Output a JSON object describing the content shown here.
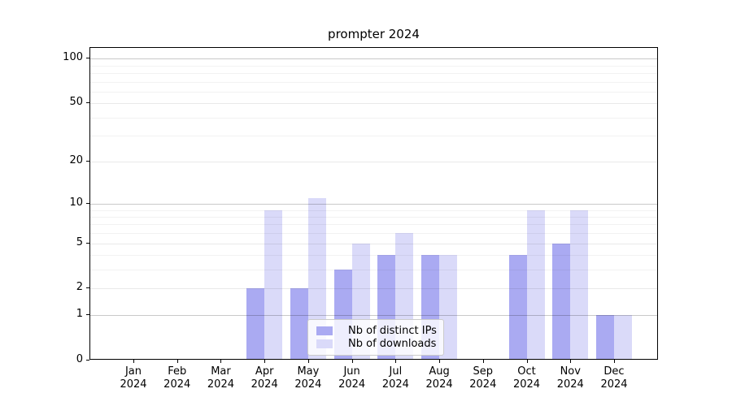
{
  "chart_data": {
    "type": "bar",
    "title": "prompter 2024",
    "categories": [
      "Jan",
      "Feb",
      "Mar",
      "Apr",
      "May",
      "Jun",
      "Jul",
      "Aug",
      "Sep",
      "Oct",
      "Nov",
      "Dec"
    ],
    "x_year": "2024",
    "series": [
      {
        "name": "Nb of distinct IPs",
        "color": "#aaaaf2",
        "values": [
          0,
          0,
          0,
          2,
          2,
          3,
          4,
          4,
          0,
          4,
          5,
          1
        ]
      },
      {
        "name": "Nb of downloads",
        "color": "#dadaf9",
        "values": [
          0,
          0,
          0,
          9,
          11,
          5,
          6,
          4,
          0,
          9,
          9,
          1
        ]
      }
    ],
    "y_axis": {
      "scale": "log1p",
      "tick_labels": [
        "0",
        "1",
        "2",
        "5",
        "10",
        "20",
        "50",
        "100"
      ],
      "tick_values": [
        0,
        1,
        2,
        5,
        10,
        20,
        50,
        100
      ],
      "decade_gridlines": [
        1,
        10,
        100
      ],
      "mid_gridlines": [
        2,
        5,
        20,
        50
      ],
      "minor_gridlines": [
        3,
        4,
        6,
        7,
        8,
        9,
        30,
        40,
        60,
        70,
        80,
        90
      ],
      "ylim": [
        0,
        118
      ]
    },
    "legend": {
      "position": "lower center",
      "labels": [
        "Nb of distinct IPs",
        "Nb of downloads"
      ]
    },
    "grid": true,
    "grid_above_bars": true
  }
}
